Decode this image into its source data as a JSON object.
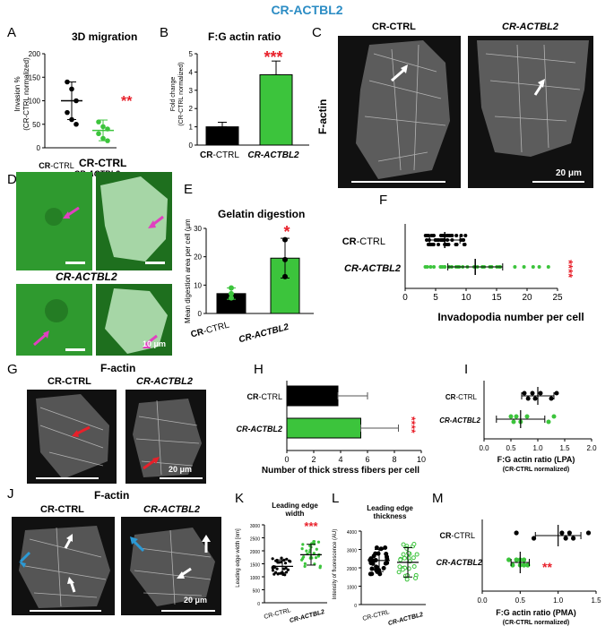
{
  "title": "CR-ACTBL2",
  "ctrl": "CR-CTRL",
  "actbl2": "CR-ACTBL2",
  "factin": "F-actin",
  "scalebar_20um": "20 μm",
  "scalebar_10um": "10 μm",
  "sig2": "**",
  "sig3": "***",
  "sig1": "*",
  "sig4": "****",
  "panels": {
    "A": "A",
    "B": "B",
    "C": "C",
    "D": "D",
    "E": "E",
    "F": "F",
    "G": "G",
    "H": "H",
    "I": "I",
    "J": "J",
    "K": "K",
    "L": "L",
    "M": "M"
  },
  "chart_data": [
    {
      "panel": "A",
      "type": "scatter",
      "title": "3D migration",
      "ylabel": "Invasion % (CR-CTRL normalized)",
      "categories": [
        "CR-CTRL",
        "CR-ACTBL2"
      ],
      "ylim": [
        0,
        200
      ],
      "yticks": [
        0,
        50,
        100,
        150,
        200
      ],
      "means": [
        100,
        37
      ],
      "sd": [
        40,
        22
      ],
      "points": [
        [
          140,
          125,
          100,
          75,
          60,
          50
        ],
        [
          55,
          45,
          40,
          30,
          20,
          15
        ]
      ],
      "significance": "**"
    },
    {
      "panel": "B",
      "type": "bar",
      "title": "F:G actin ratio",
      "ylabel": "Fold change (CR-CTRL normalized)",
      "categories": [
        "CR-CTRL",
        "CR-ACTBL2"
      ],
      "ylim": [
        0,
        5
      ],
      "yticks": [
        0,
        1,
        2,
        3,
        4,
        5
      ],
      "values": [
        1.0,
        3.85
      ],
      "sd": [
        0.25,
        0.75
      ],
      "significance": "***"
    },
    {
      "panel": "E",
      "type": "bar",
      "title": "Gelatin digestion",
      "ylabel": "Mean digestion area per cell (μm²)",
      "categories": [
        "CR-CTRL",
        "CR-ACTBL2"
      ],
      "ylim": [
        0,
        30
      ],
      "yticks": [
        0,
        10,
        20,
        30
      ],
      "values": [
        7,
        19.5
      ],
      "sd": [
        2,
        7
      ],
      "points": [
        [
          9,
          7,
          5.5
        ],
        [
          26,
          19,
          13
        ]
      ],
      "significance": "*"
    },
    {
      "panel": "F",
      "type": "scatter",
      "xlabel": "Invadopodia number per cell",
      "categories": [
        "CR-CTRL",
        "CR-ACTBL2"
      ],
      "xlim": [
        0,
        25
      ],
      "xticks": [
        0,
        5,
        10,
        15,
        20,
        25
      ],
      "means": [
        6.5,
        11.5
      ],
      "sd": [
        2.5,
        4.5
      ],
      "significance": "****"
    },
    {
      "panel": "H",
      "type": "bar",
      "xlabel": "Number of thick  stress fibers per cell",
      "categories": [
        "CR-CTRL",
        "CR-ACTBL2"
      ],
      "xlim": [
        0,
        10
      ],
      "xticks": [
        0,
        2,
        4,
        6,
        8,
        10
      ],
      "values": [
        3.8,
        5.5
      ],
      "sd": [
        2.2,
        2.8
      ],
      "significance": "****"
    },
    {
      "panel": "I",
      "type": "scatter",
      "xlabel": "F:G actin ratio (LPA)",
      "xlabel2": "(CR-CTRL normalized)",
      "categories": [
        "CR-CTRL",
        "CR-ACTBL2"
      ],
      "xlim": [
        0,
        2.0
      ],
      "xticks": [
        0.0,
        0.5,
        1.0,
        1.5,
        2.0
      ],
      "means": [
        1.0,
        0.68
      ],
      "sd": [
        0.3,
        0.45
      ],
      "points": [
        [
          0.75,
          0.82,
          0.9,
          0.95,
          1.05,
          1.25,
          1.35
        ],
        [
          0.5,
          0.55,
          0.6,
          0.68,
          0.8,
          1.2,
          1.3
        ]
      ]
    },
    {
      "panel": "K",
      "type": "scatter",
      "title": "Leading edge width",
      "ylabel": "Leading edge width [nm]",
      "categories": [
        "CR-CTRL",
        "CR-ACTBL2"
      ],
      "ylim": [
        0,
        3000
      ],
      "yticks": [
        0,
        500,
        1000,
        1500,
        2000,
        2500,
        3000
      ],
      "means": [
        1400,
        1850
      ],
      "sd": [
        250,
        400
      ],
      "significance": "***"
    },
    {
      "panel": "L",
      "type": "scatter",
      "title": "Leading edge thickness",
      "ylabel": "Intensity of fluorescence (AU)",
      "categories": [
        "CR-CTRL",
        "CR-ACTBL2"
      ],
      "ylim": [
        0,
        4000
      ],
      "yticks": [
        0,
        1000,
        2000,
        3000,
        4000
      ],
      "means": [
        2400,
        2300
      ],
      "sd": [
        600,
        800
      ]
    },
    {
      "panel": "M",
      "type": "scatter",
      "xlabel": "F:G actin ratio (PMA)",
      "xlabel2": "(CR-CTRL normalized)",
      "categories": [
        "CR-CTRL",
        "CR-ACTBL2"
      ],
      "xlim": [
        0,
        1.5
      ],
      "xticks": [
        0.0,
        0.5,
        1.0,
        1.5
      ],
      "means": [
        1.0,
        0.5
      ],
      "sd": [
        0.3,
        0.12
      ],
      "points": [
        [
          0.45,
          0.68,
          1.05,
          1.1,
          1.15,
          1.2,
          1.4
        ],
        [
          0.35,
          0.4,
          0.45,
          0.5,
          0.5,
          0.55,
          0.55,
          0.6
        ]
      ],
      "significance": "**"
    }
  ]
}
